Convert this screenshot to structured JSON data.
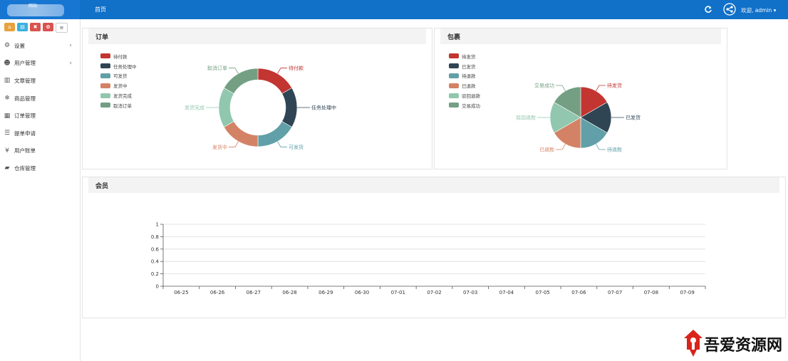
{
  "header": {
    "logo_text": "网站",
    "breadcrumb": "首页",
    "user_greeting": "欢迎, admin ▾",
    "bar_color": "#1170c8"
  },
  "quickbar": [
    {
      "icon": "home-icon",
      "color": "#e8a23c",
      "glyph": "⌂"
    },
    {
      "icon": "file-icon",
      "color": "#3ab0de",
      "glyph": "▤"
    },
    {
      "icon": "trash-icon",
      "color": "#d9534f",
      "glyph": "✖"
    },
    {
      "icon": "settings-icon",
      "color": "#d9534f",
      "glyph": "✿"
    },
    {
      "icon": "list-icon",
      "color": "#ffffff",
      "glyph": "≡"
    }
  ],
  "sidebar": {
    "items": [
      {
        "label": "设置",
        "icon": "gear-icon",
        "glyph": "⚙",
        "arrow": true
      },
      {
        "label": "用户管理",
        "icon": "users-icon",
        "glyph": "☻",
        "arrow": true
      },
      {
        "label": "文章管理",
        "icon": "article-icon",
        "glyph": "▥",
        "arrow": false
      },
      {
        "label": "商品管理",
        "icon": "snowflake-icon",
        "glyph": "❄",
        "arrow": false
      },
      {
        "label": "订单管理",
        "icon": "table-icon",
        "glyph": "▦",
        "arrow": false
      },
      {
        "label": "提单申请",
        "icon": "menu-icon",
        "glyph": "☰",
        "arrow": false
      },
      {
        "label": "用户账单",
        "icon": "yen-icon",
        "glyph": "¥",
        "arrow": false
      },
      {
        "label": "仓库管理",
        "icon": "truck-icon",
        "glyph": "▰",
        "arrow": false
      }
    ]
  },
  "orders_panel": {
    "title": "订单"
  },
  "packages_panel": {
    "title": "包裹"
  },
  "members_panel": {
    "title": "会员"
  },
  "watermark": {
    "text": "吾爱资源网"
  },
  "chart_data": [
    {
      "type": "pie",
      "variant": "donut",
      "legend_position": "top-left",
      "categories": [
        "待付款",
        "任务处理中",
        "可发货",
        "发货中",
        "发货完成",
        "取消订单"
      ],
      "values": [
        1,
        1,
        1,
        1,
        1,
        1
      ],
      "colors": [
        "#c23531",
        "#2f4554",
        "#61a0a8",
        "#d48265",
        "#91c7ae",
        "#749f83"
      ]
    },
    {
      "type": "pie",
      "legend_position": "top-left",
      "categories": [
        "待发货",
        "已发货",
        "待退款",
        "已退款",
        "驳回退款",
        "交易成功"
      ],
      "values": [
        1,
        1,
        1,
        1,
        1,
        1
      ],
      "colors": [
        "#c23531",
        "#2f4554",
        "#61a0a8",
        "#d48265",
        "#91c7ae",
        "#749f83"
      ]
    },
    {
      "type": "line",
      "x": [
        "06-25",
        "06-26",
        "06-27",
        "06-28",
        "06-29",
        "06-30",
        "07-01",
        "07-02",
        "07-03",
        "07-04",
        "07-05",
        "07-06",
        "07-07",
        "07-08",
        "07-09"
      ],
      "y_ticks": [
        "0",
        "0.2",
        "0.4",
        "0.6",
        "0.8",
        "1"
      ],
      "ylim": [
        0,
        1
      ],
      "grid": true,
      "series": []
    }
  ]
}
